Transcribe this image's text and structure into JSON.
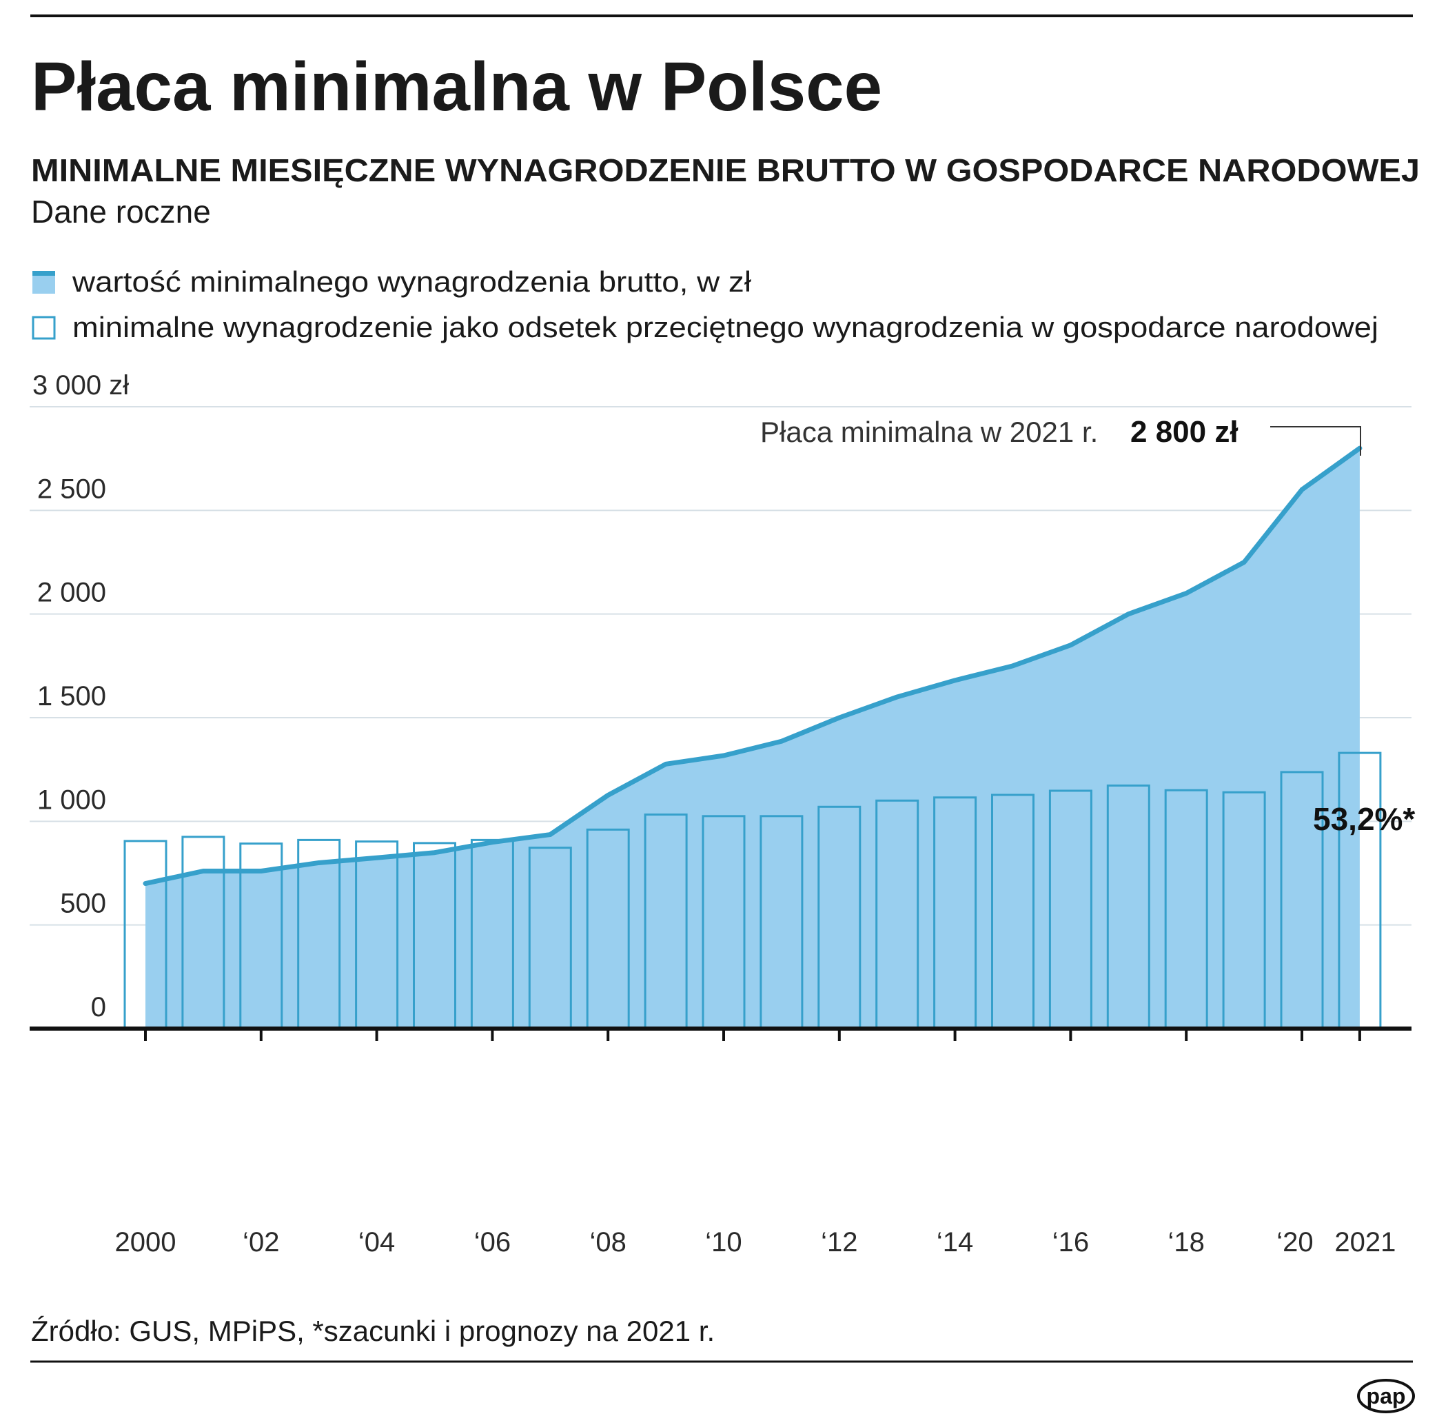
{
  "title": "Płaca minimalna w Polsce",
  "subtitle": "MINIMALNE MIESIĘCZNE WYNAGRODZENIE BRUTTO W GOSPODARCE NARODOWEJ",
  "frequency": "Dane roczne",
  "legend": [
    {
      "label": "wartość minimalnego wynagrodzenia brutto, w zł",
      "icon": "filled-area-swatch"
    },
    {
      "label": "minimalne wynagrodzenie jako odsetek przeciętnego wynagrodzenia w gospodarce narodowej",
      "icon": "outline-bar-swatch"
    }
  ],
  "annotation": {
    "text": "Płaca minimalna w 2021 r.",
    "value": "2 800 zł"
  },
  "bar_annotation": "53,2%*",
  "source": "Źródło: GUS, MPiPS, *szacunki i prognozy na 2021 r.",
  "logo": "pap",
  "colors": {
    "area_fill": "#99cfef",
    "line": "#36a0cb",
    "grid": "#d7e0e6",
    "axis": "#111111"
  },
  "chart_data": {
    "type": "area+bar",
    "x": [
      2000,
      2001,
      2002,
      2003,
      2004,
      2005,
      2006,
      2007,
      2008,
      2009,
      2010,
      2011,
      2012,
      2013,
      2014,
      2015,
      2016,
      2017,
      2018,
      2019,
      2020,
      2021
    ],
    "series": [
      {
        "name": "wartość minimalnego wynagrodzenia brutto, w zł",
        "type": "area",
        "values": [
          700,
          760,
          760,
          800,
          824,
          849,
          899,
          936,
          1126,
          1276,
          1317,
          1386,
          1500,
          1600,
          1680,
          1750,
          1850,
          2000,
          2100,
          2250,
          2600,
          2800
        ]
      },
      {
        "name": "minimalne wynagrodzenie jako odsetek przeciętnego wynagrodzenia w gospodarce narodowej",
        "type": "bar",
        "unit": "%",
        "values": [
          36.2,
          37.0,
          35.7,
          36.4,
          36.1,
          35.8,
          36.4,
          34.9,
          38.4,
          41.3,
          41.0,
          41.0,
          42.8,
          44.0,
          44.6,
          45.1,
          45.9,
          46.9,
          46.0,
          45.6,
          49.5,
          53.2
        ]
      }
    ],
    "ylim": [
      0,
      3000
    ],
    "yticks": [
      0,
      500,
      1000,
      1500,
      2000,
      2500,
      3000
    ],
    "ytick_labels": [
      "0",
      "500",
      "1 000",
      "1 500",
      "2 000",
      "2 500",
      "3 000 zł"
    ],
    "xticks": [
      2000,
      2002,
      2004,
      2006,
      2008,
      2010,
      2012,
      2014,
      2016,
      2018,
      2020,
      2021
    ],
    "xtick_labels": [
      "2000",
      "‘02",
      "‘04",
      "‘06",
      "‘08",
      "‘10",
      "‘12",
      "‘14",
      "‘16",
      "‘18",
      "‘20",
      "2021"
    ],
    "grid": true,
    "legend_position": "top-left"
  }
}
